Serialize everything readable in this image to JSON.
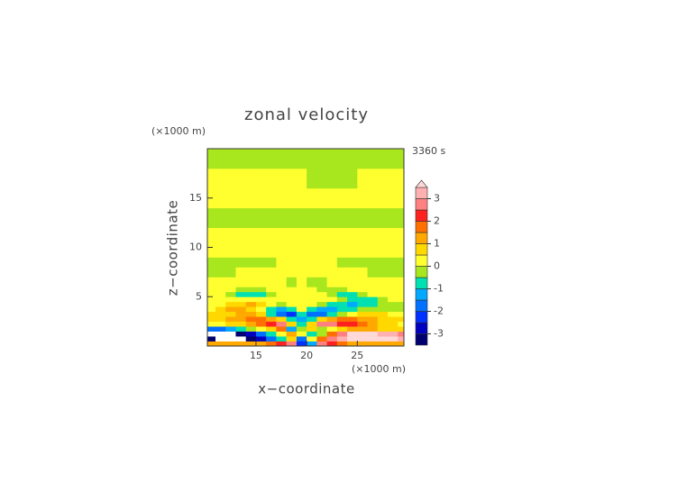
{
  "chart_data": {
    "type": "contour",
    "title": "zonal velocity",
    "time_label": "3360 s",
    "x_label": "x−coordinate",
    "y_label": "z−coordinate",
    "x_unit": "(×1000 m)",
    "y_unit": "(×1000 m)",
    "xlim": [
      10.2,
      29.6
    ],
    "ylim": [
      0,
      20
    ],
    "xticks": [
      15,
      20,
      25
    ],
    "yticks": [
      5,
      10,
      15
    ],
    "x_edges": [
      10,
      11,
      12,
      13,
      14,
      15,
      16,
      17,
      18,
      19,
      20,
      21,
      22,
      23,
      24,
      25,
      26,
      27,
      28,
      29,
      30
    ],
    "y_edges": [
      0,
      0.5,
      1,
      1.5,
      2,
      2.5,
      3,
      3.5,
      4,
      4.5,
      5,
      5.5,
      6,
      7,
      8,
      9,
      10,
      12,
      14,
      16,
      18,
      20
    ],
    "z": [
      [
        1.2,
        1.2,
        1.2,
        1.2,
        1.2,
        1.2,
        1.7,
        2.2,
        2.7,
        -2.2,
        -1.2,
        2.7,
        2.2,
        1.7,
        1.2,
        1.2,
        1.2,
        1.2,
        1.2,
        1.2
      ],
      [
        -3.2,
        -3.7,
        -3.7,
        -3.7,
        -3.2,
        -2.7,
        -1.7,
        -0.7,
        0.7,
        -1.7,
        0.2,
        1.7,
        2.7,
        3.2,
        3.7,
        3.7,
        3.7,
        3.7,
        3.7,
        3.2
      ],
      [
        -3.7,
        -3.7,
        -3.7,
        -3.2,
        -2.7,
        -1.7,
        -0.7,
        0.2,
        1.2,
        0.2,
        -0.7,
        -0.2,
        1.7,
        2.7,
        3.7,
        3.7,
        3.7,
        3.2,
        3.2,
        2.7
      ],
      [
        -1.7,
        -1.7,
        -1.2,
        -0.7,
        -0.2,
        0.2,
        0.7,
        1.7,
        -1.2,
        -0.2,
        0.7,
        -0.2,
        0.2,
        0.7,
        1.2,
        1.2,
        1.2,
        0.7,
        0.7,
        0.7
      ],
      [
        0.2,
        0.2,
        0.7,
        0.7,
        1.2,
        1.7,
        2.2,
        2.7,
        0.7,
        -0.7,
        0.7,
        2.7,
        2.7,
        2.2,
        2.2,
        1.7,
        1.2,
        0.7,
        0.7,
        0.2
      ],
      [
        0.7,
        0.7,
        1.2,
        1.2,
        1.7,
        1.7,
        1.2,
        0.7,
        -0.7,
        -1.2,
        -0.7,
        0.7,
        1.2,
        1.7,
        1.7,
        1.2,
        1.2,
        0.7,
        0.7,
        0.7
      ],
      [
        0.7,
        0.7,
        0.7,
        1.2,
        1.2,
        0.7,
        -0.7,
        -1.7,
        -2.2,
        -0.7,
        -1.7,
        -1.7,
        -0.7,
        -0.2,
        0.2,
        0.7,
        0.7,
        0.7,
        0.2,
        0.2
      ],
      [
        0.2,
        0.7,
        1.2,
        1.2,
        0.7,
        0.2,
        -0.7,
        -1.2,
        -0.7,
        0.2,
        -0.7,
        -1.2,
        -1.2,
        -0.7,
        -0.7,
        -0.2,
        -0.2,
        -0.2,
        -0.2,
        -0.2
      ],
      [
        0.2,
        0.2,
        0.7,
        0.7,
        1.2,
        0.7,
        0.2,
        -0.2,
        0.2,
        0.2,
        0.2,
        -0.2,
        -0.7,
        -0.7,
        -1.2,
        -0.7,
        -0.7,
        -0.2,
        -0.2,
        -0.2
      ],
      [
        0.2,
        0.2,
        0.2,
        0.2,
        0.2,
        0.2,
        0.2,
        0.2,
        0.2,
        0.2,
        0.2,
        0.2,
        0.2,
        -0.2,
        -0.7,
        -0.7,
        -0.7,
        -0.2,
        0.2,
        0.2
      ],
      [
        0.2,
        0.2,
        -0.2,
        -0.7,
        -0.7,
        -0.7,
        -0.2,
        0.2,
        0.2,
        0.2,
        0.2,
        0.2,
        -0.2,
        -0.7,
        -0.7,
        -0.2,
        0.2,
        0.2,
        0.2,
        0.2
      ],
      [
        0.2,
        0.2,
        0.2,
        -0.2,
        -0.2,
        -0.2,
        0.2,
        0.2,
        0.2,
        0.2,
        0.2,
        -0.2,
        -0.2,
        -0.2,
        0.2,
        0.2,
        0.2,
        0.2,
        0.2,
        0.2
      ],
      [
        0.2,
        0.2,
        0.2,
        0.2,
        0.2,
        0.2,
        0.2,
        0.2,
        -0.2,
        0.2,
        -0.2,
        -0.2,
        0.2,
        0.2,
        0.2,
        0.2,
        0.2,
        0.2,
        0.2,
        0.2
      ],
      [
        -0.2,
        -0.2,
        -0.2,
        0.2,
        0.2,
        0.2,
        0.2,
        0.2,
        0.2,
        0.2,
        0.2,
        0.2,
        0.2,
        0.2,
        0.2,
        0.2,
        -0.2,
        -0.2,
        -0.2,
        -0.2
      ],
      [
        -0.2,
        -0.2,
        -0.2,
        -0.2,
        -0.2,
        -0.2,
        -0.2,
        0.2,
        0.2,
        0.2,
        0.2,
        0.2,
        0.2,
        -0.2,
        -0.2,
        -0.2,
        -0.2,
        -0.2,
        -0.2,
        -0.2
      ],
      [
        0.2,
        0.2,
        0.2,
        0.2,
        0.2,
        0.2,
        0.2,
        0.2,
        0.2,
        0.2,
        0.2,
        0.2,
        0.2,
        0.2,
        0.2,
        0.2,
        0.2,
        0.2,
        0.2,
        0.2
      ],
      [
        0.2,
        0.2,
        0.2,
        0.2,
        0.2,
        0.2,
        0.2,
        0.2,
        0.2,
        0.2,
        0.2,
        0.2,
        0.2,
        0.2,
        0.2,
        0.2,
        0.2,
        0.2,
        0.2,
        0.2
      ],
      [
        -0.2,
        -0.2,
        -0.2,
        -0.2,
        -0.2,
        -0.2,
        -0.2,
        -0.2,
        -0.2,
        -0.2,
        -0.2,
        -0.2,
        -0.2,
        -0.2,
        -0.2,
        -0.2,
        -0.2,
        -0.2,
        -0.2,
        -0.2
      ],
      [
        0.2,
        0.2,
        0.2,
        0.2,
        0.2,
        0.2,
        0.2,
        0.2,
        0.2,
        0.2,
        0.2,
        0.2,
        0.2,
        0.2,
        0.2,
        0.2,
        0.2,
        0.2,
        0.2,
        0.2
      ],
      [
        0.2,
        0.2,
        0.2,
        0.2,
        0.2,
        0.2,
        0.2,
        0.2,
        0.2,
        0.2,
        -0.2,
        -0.2,
        -0.2,
        -0.2,
        -0.2,
        0.2,
        0.2,
        0.2,
        0.2,
        0.2
      ],
      [
        -0.2,
        -0.2,
        -0.2,
        -0.2,
        -0.2,
        -0.2,
        -0.2,
        -0.2,
        -0.2,
        -0.2,
        -0.2,
        -0.2,
        -0.2,
        -0.2,
        -0.2,
        -0.2,
        -0.2,
        -0.2,
        -0.2,
        -0.2
      ]
    ],
    "levels": [
      -3.5,
      -3,
      -2.5,
      -2,
      -1.5,
      -1,
      -0.5,
      0,
      0.5,
      1,
      1.5,
      2,
      2.5,
      3,
      3.5
    ],
    "colors": [
      "#000070",
      "#0000c0",
      "#0030ff",
      "#0070ff",
      "#00a8ff",
      "#00e0b0",
      "#a8e61e",
      "#ffff30",
      "#ffd800",
      "#ffa800",
      "#ff7000",
      "#ff2020",
      "#ff8080",
      "#ffb0b0"
    ],
    "over_color": "#ffd8d8",
    "under_color": "#ffffff",
    "colorbar_ticks": [
      -3,
      -2,
      -1,
      0,
      1,
      2,
      3
    ]
  }
}
